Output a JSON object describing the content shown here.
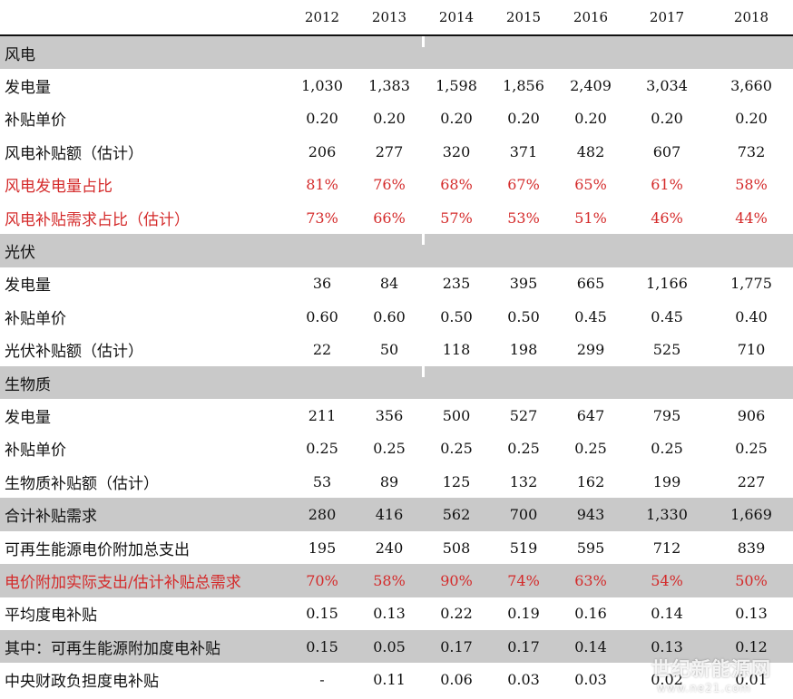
{
  "years": [
    "2012",
    "2013",
    "2014",
    "2015",
    "2016",
    "2017",
    "2018"
  ],
  "rows": [
    {
      "label": "风电",
      "style": "section",
      "values": []
    },
    {
      "label": "发电量",
      "style": "normal",
      "values": [
        "1,030",
        "1,383",
        "1,598",
        "1,856",
        "2,409",
        "3,034",
        "3,660"
      ]
    },
    {
      "label": "补贴单价",
      "style": "normal",
      "values": [
        "0.20",
        "0.20",
        "0.20",
        "0.20",
        "0.20",
        "0.20",
        "0.20"
      ]
    },
    {
      "label": "风电补贴额（估计）",
      "style": "normal",
      "values": [
        "206",
        "277",
        "320",
        "371",
        "482",
        "607",
        "732"
      ]
    },
    {
      "label": "风电发电量占比",
      "style": "red",
      "values": [
        "81%",
        "76%",
        "68%",
        "67%",
        "65%",
        "61%",
        "58%"
      ]
    },
    {
      "label": "风电补贴需求占比（估计）",
      "style": "red",
      "values": [
        "73%",
        "66%",
        "57%",
        "53%",
        "51%",
        "46%",
        "44%"
      ]
    },
    {
      "label": "光伏",
      "style": "section",
      "values": []
    },
    {
      "label": "发电量",
      "style": "normal",
      "values": [
        "36",
        "84",
        "235",
        "395",
        "665",
        "1,166",
        "1,775"
      ]
    },
    {
      "label": "补贴单价",
      "style": "normal",
      "values": [
        "0.60",
        "0.60",
        "0.50",
        "0.50",
        "0.45",
        "0.45",
        "0.40"
      ]
    },
    {
      "label": "光伏补贴额（估计）",
      "style": "normal",
      "values": [
        "22",
        "50",
        "118",
        "198",
        "299",
        "525",
        "710"
      ]
    },
    {
      "label": "生物质",
      "style": "section",
      "values": []
    },
    {
      "label": "发电量",
      "style": "normal",
      "values": [
        "211",
        "356",
        "500",
        "527",
        "647",
        "795",
        "906"
      ]
    },
    {
      "label": "补贴单价",
      "style": "normal",
      "values": [
        "0.25",
        "0.25",
        "0.25",
        "0.25",
        "0.25",
        "0.25",
        "0.25"
      ]
    },
    {
      "label": "生物质补贴额（估计）",
      "style": "normal",
      "values": [
        "53",
        "89",
        "125",
        "132",
        "162",
        "199",
        "227"
      ]
    },
    {
      "label": "合计补贴需求",
      "style": "gray",
      "values": [
        "280",
        "416",
        "562",
        "700",
        "943",
        "1,330",
        "1,669"
      ]
    },
    {
      "label": "可再生能源电价附加总支出",
      "style": "normal",
      "values": [
        "195",
        "240",
        "508",
        "519",
        "595",
        "712",
        "839"
      ]
    },
    {
      "label": "电价附加实际支出/估计补贴总需求",
      "style": "gray-red",
      "values": [
        "70%",
        "58%",
        "90%",
        "74%",
        "63%",
        "54%",
        "50%"
      ]
    },
    {
      "label": "平均度电补贴",
      "style": "normal",
      "values": [
        "0.15",
        "0.13",
        "0.22",
        "0.19",
        "0.16",
        "0.14",
        "0.13"
      ]
    },
    {
      "label": "其中：可再生能源附加度电补贴",
      "style": "gray",
      "values": [
        "0.15",
        "0.05",
        "0.17",
        "0.17",
        "0.14",
        "0.13",
        "0.12"
      ]
    },
    {
      "label": "中央财政负担度电补贴",
      "style": "normal",
      "values": [
        "-",
        "0.11",
        "0.06",
        "0.03",
        "0.03",
        "0.02",
        "0.01"
      ]
    }
  ],
  "watermark": {
    "name": "世纪新能源网",
    "url": "www.ne21.com"
  }
}
